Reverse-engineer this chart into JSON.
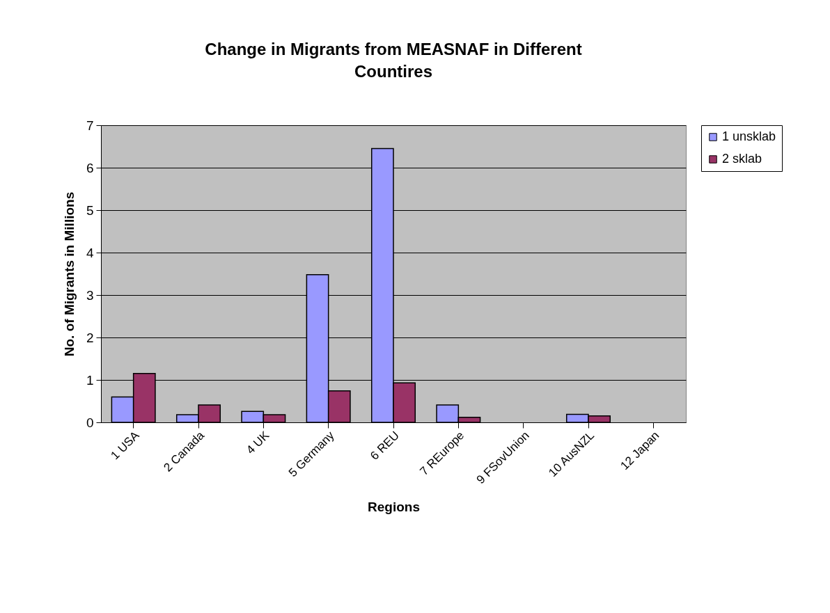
{
  "chart_data": {
    "type": "bar",
    "title": "Change in Migrants from MEASNAF in Different Countires",
    "xlabel": "Regions",
    "ylabel": "No. of Migrants in Millions",
    "categories": [
      "1 USA",
      "2 Canada",
      "4 UK",
      "5 Germany",
      "6 REU",
      "7 REurope",
      "9 FSovUnion",
      "10 AusNZL",
      "12 Japan"
    ],
    "series": [
      {
        "name": "1 unsklab",
        "color": "#9999ff",
        "values": [
          0.6,
          0.18,
          0.26,
          3.48,
          6.45,
          0.41,
          0,
          0.19,
          0
        ]
      },
      {
        "name": "2 sklab",
        "color": "#993366",
        "values": [
          1.15,
          0.41,
          0.18,
          0.74,
          0.93,
          0.12,
          0,
          0.15,
          0
        ]
      }
    ],
    "ylim": [
      0,
      7
    ],
    "yticks": [
      0,
      1,
      2,
      3,
      4,
      5,
      6,
      7
    ],
    "grid": "y",
    "legend": "right"
  }
}
